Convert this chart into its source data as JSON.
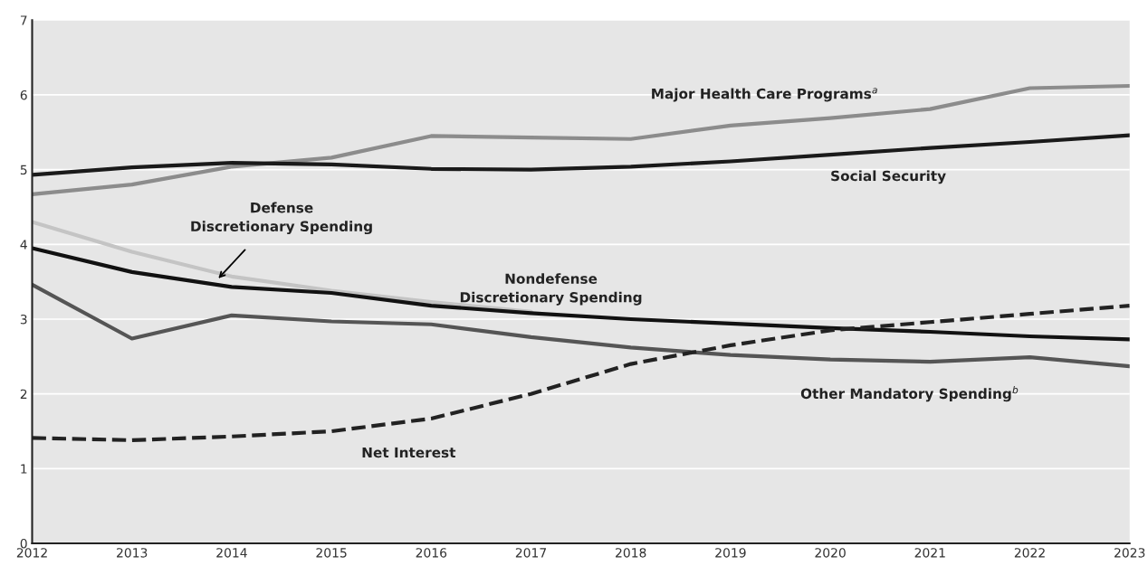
{
  "chart_data": {
    "type": "line",
    "x": [
      2012,
      2013,
      2014,
      2015,
      2016,
      2017,
      2018,
      2019,
      2020,
      2021,
      2022,
      2023
    ],
    "xlim": [
      2012,
      2023
    ],
    "xticks": [
      2012,
      2013,
      2014,
      2015,
      2016,
      2017,
      2018,
      2019,
      2020,
      2021,
      2022,
      2023
    ],
    "ylim": [
      0,
      7
    ],
    "yticks": [
      0,
      1,
      2,
      3,
      4,
      5,
      6,
      7
    ],
    "grid": "y",
    "legend": false,
    "marker": "none",
    "series": [
      {
        "name": "Major Health Care Programs$^{a}$",
        "color": "#8c8c8c",
        "line_style": "solid",
        "values": [
          4.67,
          4.8,
          5.04,
          5.16,
          5.45,
          5.43,
          5.41,
          5.59,
          5.69,
          5.81,
          6.09,
          6.12
        ]
      },
      {
        "name": "Social Security",
        "color": "#1a1a1a",
        "line_style": "solid",
        "values": [
          4.93,
          5.03,
          5.09,
          5.07,
          5.01,
          5.0,
          5.04,
          5.11,
          5.2,
          5.29,
          5.37,
          5.46
        ]
      },
      {
        "name": "Defense\nDiscretionary Spending",
        "color": "#c4c4c4",
        "line_style": "solid",
        "values": [
          4.3,
          3.9,
          3.57,
          3.38,
          3.23,
          3.1,
          null,
          null,
          null,
          null,
          null,
          null
        ]
      },
      {
        "name": "Nondefense\nDiscretionary Spending",
        "color": "#111111",
        "line_style": "solid",
        "values": [
          3.95,
          3.63,
          3.43,
          3.35,
          3.18,
          3.08,
          3.0,
          2.94,
          2.88,
          2.83,
          2.77,
          2.73
        ]
      },
      {
        "name": "Other Mandatory Spending$^{b}$",
        "color": "#555555",
        "line_style": "solid",
        "values": [
          3.46,
          2.74,
          3.05,
          2.97,
          2.93,
          2.76,
          2.62,
          2.52,
          2.46,
          2.43,
          2.49,
          2.37
        ]
      },
      {
        "name": "Net Interest",
        "color": "#222222",
        "line_style": "dashed",
        "values": [
          1.41,
          1.38,
          1.43,
          1.5,
          1.67,
          2.0,
          2.4,
          2.65,
          2.85,
          2.96,
          3.07,
          3.18
        ]
      }
    ]
  }
}
